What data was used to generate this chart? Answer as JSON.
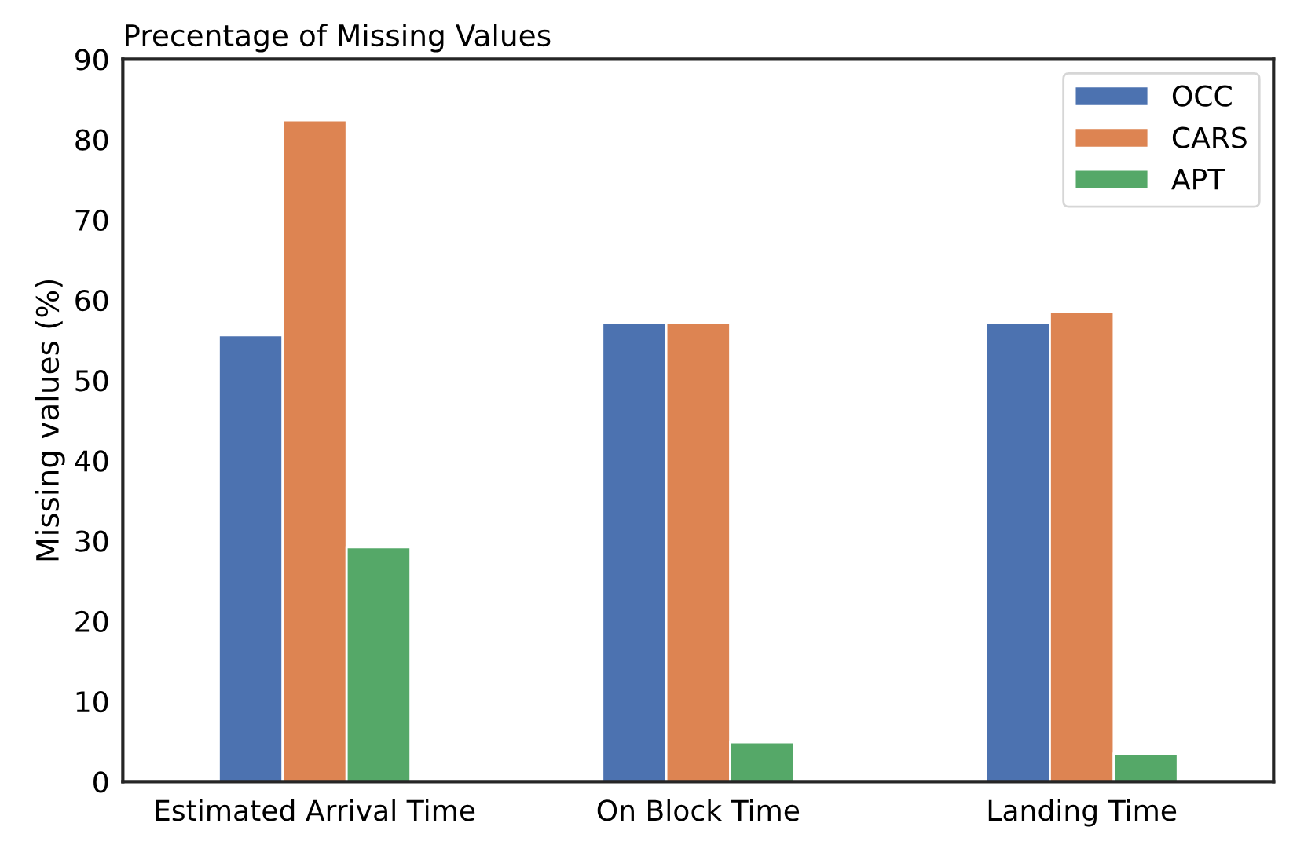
{
  "chart_data": {
    "type": "bar",
    "title": "Precentage of Missing Values",
    "ylabel": "Missing values (%)",
    "categories": [
      "Estimated Arrival Time",
      "On Block Time",
      "Landing Time"
    ],
    "series": [
      {
        "name": "OCC",
        "color": "#4c72b0",
        "values": [
          55.6,
          57.1,
          57.1
        ]
      },
      {
        "name": "CARS",
        "color": "#dd8452",
        "values": [
          82.4,
          57.1,
          58.5
        ]
      },
      {
        "name": "APT",
        "color": "#55a868",
        "values": [
          29.2,
          4.9,
          3.5
        ]
      }
    ],
    "ylim": [
      0,
      90
    ],
    "yticks": [
      0,
      10,
      20,
      30,
      40,
      50,
      60,
      70,
      80,
      90
    ],
    "grid": false,
    "legend": "top right"
  }
}
